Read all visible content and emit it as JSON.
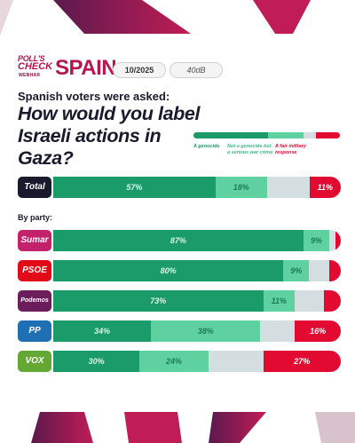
{
  "header": {
    "brand_line1": "POLL'S",
    "brand_line2": "CHECK",
    "brand_line3": "WEBHAR",
    "country": "SPAIN",
    "date": "10/2025",
    "source": "40dB"
  },
  "subtitle": "Spanish voters were asked:",
  "title": "How would you label Israeli actions in Gaza?",
  "colors": {
    "genocide": "#1b9a6a",
    "war_crime": "#5fd0a0",
    "no_answer": "#d4dde0",
    "military_response": "#e30a32",
    "brand": "#b6154d",
    "dark": "#1a1a2e"
  },
  "by_party_label": "By party:",
  "chart_data": {
    "type": "bar",
    "orientation": "horizontal",
    "stacked": true,
    "categories": [
      "Total",
      "Sumar",
      "PSOE",
      "Podemos",
      "PP",
      "VOX"
    ],
    "series": [
      {
        "name": "A genocide",
        "values": [
          57,
          87,
          80,
          73,
          34,
          30
        ]
      },
      {
        "name": "Not a genocide but a serious war crime",
        "values": [
          18,
          9,
          9,
          11,
          38,
          24
        ]
      },
      {
        "name": "",
        "values": [
          15,
          2,
          7,
          10,
          12,
          19
        ]
      },
      {
        "name": "A fair military response",
        "values": [
          11,
          2,
          4,
          6,
          16,
          27
        ]
      }
    ],
    "labels": [
      [
        "57%",
        "18%",
        "",
        "11%"
      ],
      [
        "87%",
        "9%",
        "",
        ""
      ],
      [
        "80%",
        "9%",
        "",
        ""
      ],
      [
        "73%",
        "11%",
        "",
        "6%"
      ],
      [
        "34%",
        "38%",
        "",
        "16%"
      ],
      [
        "30%",
        "24%",
        "",
        "27%"
      ]
    ],
    "legend": [
      "A genocide",
      "Not a genocide but a serious war crime",
      "A fair military response"
    ],
    "legend_position": "top-right",
    "xlim": [
      0,
      100
    ]
  },
  "rows": [
    {
      "label": "Total",
      "bg": "#1a1a2e"
    },
    {
      "label": "Sumar",
      "bg": "#c4216d"
    },
    {
      "label": "PSOE",
      "bg": "#e30a17"
    },
    {
      "label": "Podemos",
      "bg": "#6b1e5b"
    },
    {
      "label": "PP",
      "bg": "#1f6fb5"
    },
    {
      "label": "VOX",
      "bg": "#63a832"
    }
  ]
}
